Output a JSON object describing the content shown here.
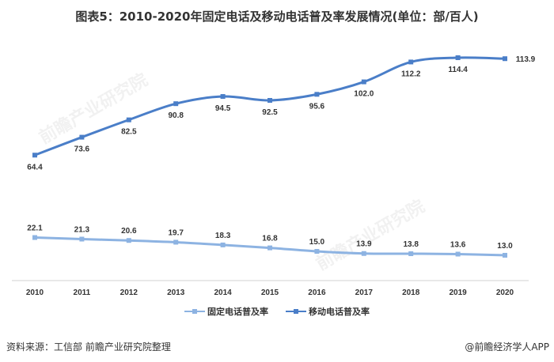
{
  "title": "图表5：2010-2020年固定电话及移动电话普及率发展情况(单位：部/百人)",
  "source": "资料来源：工信部 前瞻产业研究院整理",
  "credit": "@前瞻经济学人APP",
  "watermark": "前瞻产业研究院",
  "chart_data": {
    "type": "line",
    "title": "图表5：2010-2020年固定电话及移动电话普及率发展情况(单位：部/百人)",
    "xlabel": "",
    "ylabel": "部/百人",
    "categories": [
      "2010",
      "2011",
      "2012",
      "2013",
      "2014",
      "2015",
      "2016",
      "2017",
      "2018",
      "2019",
      "2020"
    ],
    "ylim": [
      0,
      125
    ],
    "grid": false,
    "legend_position": "bottom",
    "series": [
      {
        "name": "固定电话普及率",
        "color": "#8db3e2",
        "values": [
          22.1,
          21.3,
          20.6,
          19.7,
          18.3,
          16.8,
          15.0,
          13.9,
          13.8,
          13.6,
          13.0
        ],
        "labels": [
          "22.1",
          "21.3",
          "20.6",
          "19.7",
          "18.3",
          "16.8",
          "15.0",
          "13.9",
          "13.8",
          "13.6",
          "13.0"
        ]
      },
      {
        "name": "移动电话普及率",
        "color": "#4a7ec8",
        "values": [
          64.4,
          73.6,
          82.5,
          90.8,
          94.5,
          92.5,
          95.6,
          102.0,
          112.2,
          114.4,
          113.9
        ],
        "labels": [
          "64.4",
          "73.6",
          "82.5",
          "90.8",
          "94.5",
          "92.5",
          "95.6",
          "102.0",
          "112.2",
          "114.4",
          "113.9"
        ]
      }
    ]
  }
}
